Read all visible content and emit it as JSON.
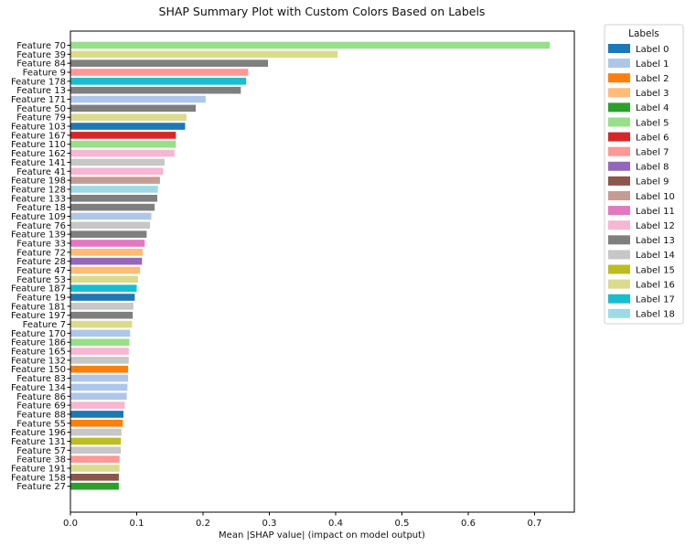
{
  "chart_data": {
    "type": "bar",
    "orientation": "horizontal",
    "title": "SHAP Summary Plot with Custom Colors Based on Labels",
    "xlabel": "Mean |SHAP value| (impact on model output)",
    "ylabel": "",
    "xlim": [
      0,
      0.76
    ],
    "xticks": [
      "0.0",
      "0.1",
      "0.2",
      "0.3",
      "0.4",
      "0.5",
      "0.6",
      "0.7"
    ],
    "grid": false,
    "legend": {
      "title": "Labels",
      "placement": "outside-right",
      "entries": [
        {
          "name": "Label 0",
          "color": "#1f77b4"
        },
        {
          "name": "Label 1",
          "color": "#aec7e8"
        },
        {
          "name": "Label 2",
          "color": "#ff7f0e"
        },
        {
          "name": "Label 3",
          "color": "#ffbb78"
        },
        {
          "name": "Label 4",
          "color": "#2ca02c"
        },
        {
          "name": "Label 5",
          "color": "#98df8a"
        },
        {
          "name": "Label 6",
          "color": "#d62728"
        },
        {
          "name": "Label 7",
          "color": "#ff9896"
        },
        {
          "name": "Label 8",
          "color": "#9467bd"
        },
        {
          "name": "Label 9",
          "color": "#8c564b"
        },
        {
          "name": "Label 10",
          "color": "#c49c94"
        },
        {
          "name": "Label 11",
          "color": "#e377c2"
        },
        {
          "name": "Label 12",
          "color": "#f7b6d2"
        },
        {
          "name": "Label 13",
          "color": "#7f7f7f"
        },
        {
          "name": "Label 14",
          "color": "#c7c7c7"
        },
        {
          "name": "Label 15",
          "color": "#bcbd22"
        },
        {
          "name": "Label 16",
          "color": "#dbdb8d"
        },
        {
          "name": "Label 17",
          "color": "#17becf"
        },
        {
          "name": "Label 18",
          "color": "#9edae5"
        }
      ]
    },
    "bars": [
      {
        "feature": "Feature 70",
        "value": 0.723,
        "label": 5
      },
      {
        "feature": "Feature 39",
        "value": 0.403,
        "label": 16
      },
      {
        "feature": "Feature 84",
        "value": 0.298,
        "label": 13
      },
      {
        "feature": "Feature 9",
        "value": 0.268,
        "label": 7
      },
      {
        "feature": "Feature 178",
        "value": 0.265,
        "label": 17
      },
      {
        "feature": "Feature 13",
        "value": 0.257,
        "label": 13
      },
      {
        "feature": "Feature 171",
        "value": 0.204,
        "label": 1
      },
      {
        "feature": "Feature 50",
        "value": 0.189,
        "label": 13
      },
      {
        "feature": "Feature 79",
        "value": 0.175,
        "label": 16
      },
      {
        "feature": "Feature 103",
        "value": 0.173,
        "label": 0
      },
      {
        "feature": "Feature 167",
        "value": 0.159,
        "label": 6
      },
      {
        "feature": "Feature 110",
        "value": 0.159,
        "label": 5
      },
      {
        "feature": "Feature 162",
        "value": 0.157,
        "label": 12
      },
      {
        "feature": "Feature 141",
        "value": 0.142,
        "label": 14
      },
      {
        "feature": "Feature 41",
        "value": 0.14,
        "label": 12
      },
      {
        "feature": "Feature 198",
        "value": 0.135,
        "label": 10
      },
      {
        "feature": "Feature 128",
        "value": 0.132,
        "label": 18
      },
      {
        "feature": "Feature 133",
        "value": 0.131,
        "label": 13
      },
      {
        "feature": "Feature 18",
        "value": 0.127,
        "label": 13
      },
      {
        "feature": "Feature 109",
        "value": 0.122,
        "label": 1
      },
      {
        "feature": "Feature 76",
        "value": 0.12,
        "label": 14
      },
      {
        "feature": "Feature 139",
        "value": 0.115,
        "label": 13
      },
      {
        "feature": "Feature 33",
        "value": 0.112,
        "label": 11
      },
      {
        "feature": "Feature 72",
        "value": 0.109,
        "label": 3
      },
      {
        "feature": "Feature 28",
        "value": 0.108,
        "label": 8
      },
      {
        "feature": "Feature 47",
        "value": 0.105,
        "label": 3
      },
      {
        "feature": "Feature 53",
        "value": 0.102,
        "label": 16
      },
      {
        "feature": "Feature 187",
        "value": 0.1,
        "label": 17
      },
      {
        "feature": "Feature 19",
        "value": 0.097,
        "label": 0
      },
      {
        "feature": "Feature 181",
        "value": 0.095,
        "label": 14
      },
      {
        "feature": "Feature 197",
        "value": 0.094,
        "label": 13
      },
      {
        "feature": "Feature 7",
        "value": 0.093,
        "label": 16
      },
      {
        "feature": "Feature 170",
        "value": 0.09,
        "label": 1
      },
      {
        "feature": "Feature 186",
        "value": 0.089,
        "label": 5
      },
      {
        "feature": "Feature 165",
        "value": 0.088,
        "label": 12
      },
      {
        "feature": "Feature 132",
        "value": 0.088,
        "label": 14
      },
      {
        "feature": "Feature 150",
        "value": 0.087,
        "label": 2
      },
      {
        "feature": "Feature 83",
        "value": 0.087,
        "label": 1
      },
      {
        "feature": "Feature 134",
        "value": 0.086,
        "label": 1
      },
      {
        "feature": "Feature 86",
        "value": 0.085,
        "label": 1
      },
      {
        "feature": "Feature 69",
        "value": 0.082,
        "label": 12
      },
      {
        "feature": "Feature 88",
        "value": 0.08,
        "label": 0
      },
      {
        "feature": "Feature 55",
        "value": 0.079,
        "label": 2
      },
      {
        "feature": "Feature 196",
        "value": 0.077,
        "label": 14
      },
      {
        "feature": "Feature 131",
        "value": 0.076,
        "label": 15
      },
      {
        "feature": "Feature 57",
        "value": 0.076,
        "label": 14
      },
      {
        "feature": "Feature 38",
        "value": 0.074,
        "label": 7
      },
      {
        "feature": "Feature 191",
        "value": 0.074,
        "label": 16
      },
      {
        "feature": "Feature 158",
        "value": 0.073,
        "label": 9
      },
      {
        "feature": "Feature 27",
        "value": 0.073,
        "label": 4
      }
    ]
  }
}
